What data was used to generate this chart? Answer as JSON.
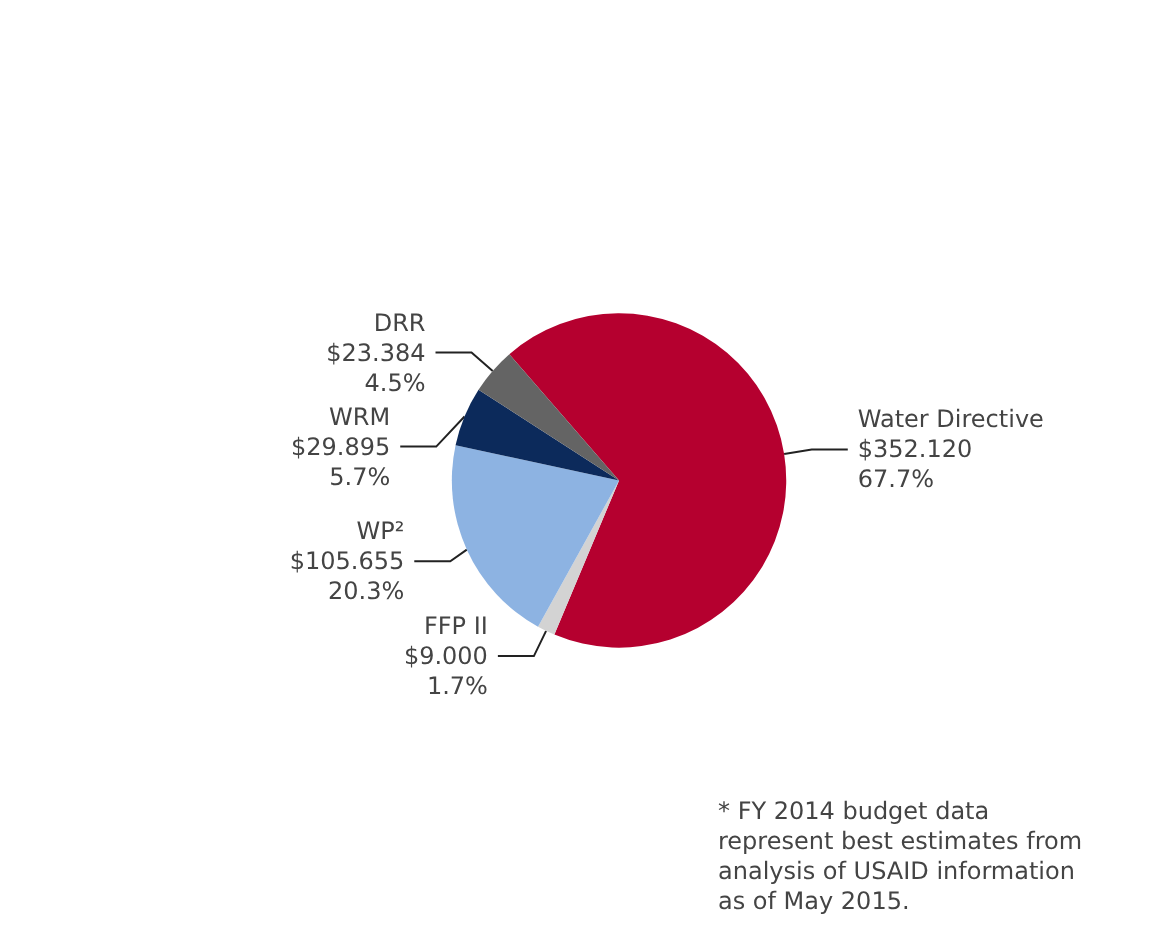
{
  "chart_data": {
    "type": "pie",
    "categories": [
      "Water Directive",
      "FFP II",
      "WP²",
      "WRM",
      "DRR"
    ],
    "values": [
      352.12,
      9.0,
      105.655,
      29.895,
      23.384
    ],
    "colors": [
      "#b5002f",
      "#d3d3d3",
      "#8db3e2",
      "#0c2a5b",
      "#646464"
    ],
    "value_labels": [
      "$352.120\n67.7%",
      "$9.000\n1.7%",
      "$105.655\n20.3%",
      "$29.895\n5.7%",
      "$23.384\n4.5%"
    ],
    "annotations": [
      "* FY 2014 budget data represent best estimates from analysis of USAID information as of May 2015."
    ],
    "legend": false
  }
}
